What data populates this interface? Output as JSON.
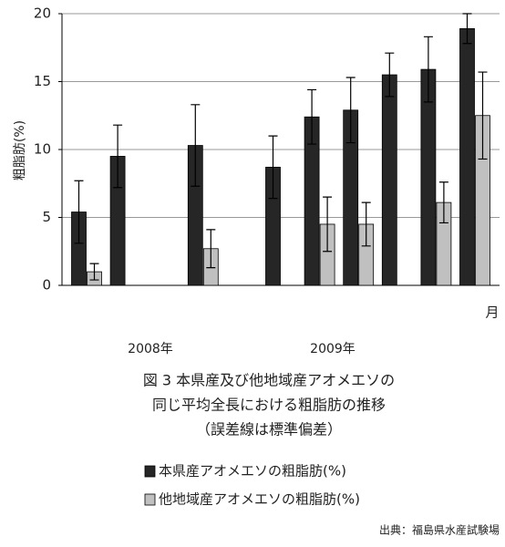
{
  "chart_data": {
    "type": "bar",
    "title": [
      "図 3  本県産及び他地域産アオメエソの",
      "同じ平均全長における粗脂肪の推移"
    ],
    "subtitle": "（誤差線は標準偏差）",
    "y_label": "粗脂肪(%)",
    "x_label": "月",
    "annotations": [
      "2008年",
      "2009年"
    ],
    "source": "出典：福島県水産試験場",
    "categories": [
      null,
      null,
      null,
      null,
      null,
      null,
      null,
      null,
      null,
      null,
      null
    ],
    "series": [
      {
        "name": "本県産アオメエソの粗脂肪(%)",
        "color": "#262626",
        "values": [
          5.4,
          9.5,
          null,
          10.3,
          null,
          8.7,
          12.4,
          12.9,
          15.5,
          15.9,
          18.9
        ],
        "errors": [
          2.3,
          2.3,
          null,
          3.0,
          null,
          2.3,
          2.0,
          2.4,
          1.6,
          2.4,
          1.1
        ]
      },
      {
        "name": "他地域産アオメエソの粗脂肪(%)",
        "color": "#c0c0c0",
        "values": [
          1.0,
          null,
          null,
          2.7,
          null,
          null,
          4.5,
          4.5,
          null,
          6.1,
          12.5
        ],
        "errors": [
          0.6,
          null,
          null,
          1.4,
          null,
          null,
          2.0,
          1.6,
          null,
          1.5,
          3.2
        ]
      }
    ],
    "ylim": [
      0,
      20
    ],
    "yticks": [
      0,
      5,
      10,
      15,
      20
    ],
    "grid": true
  }
}
